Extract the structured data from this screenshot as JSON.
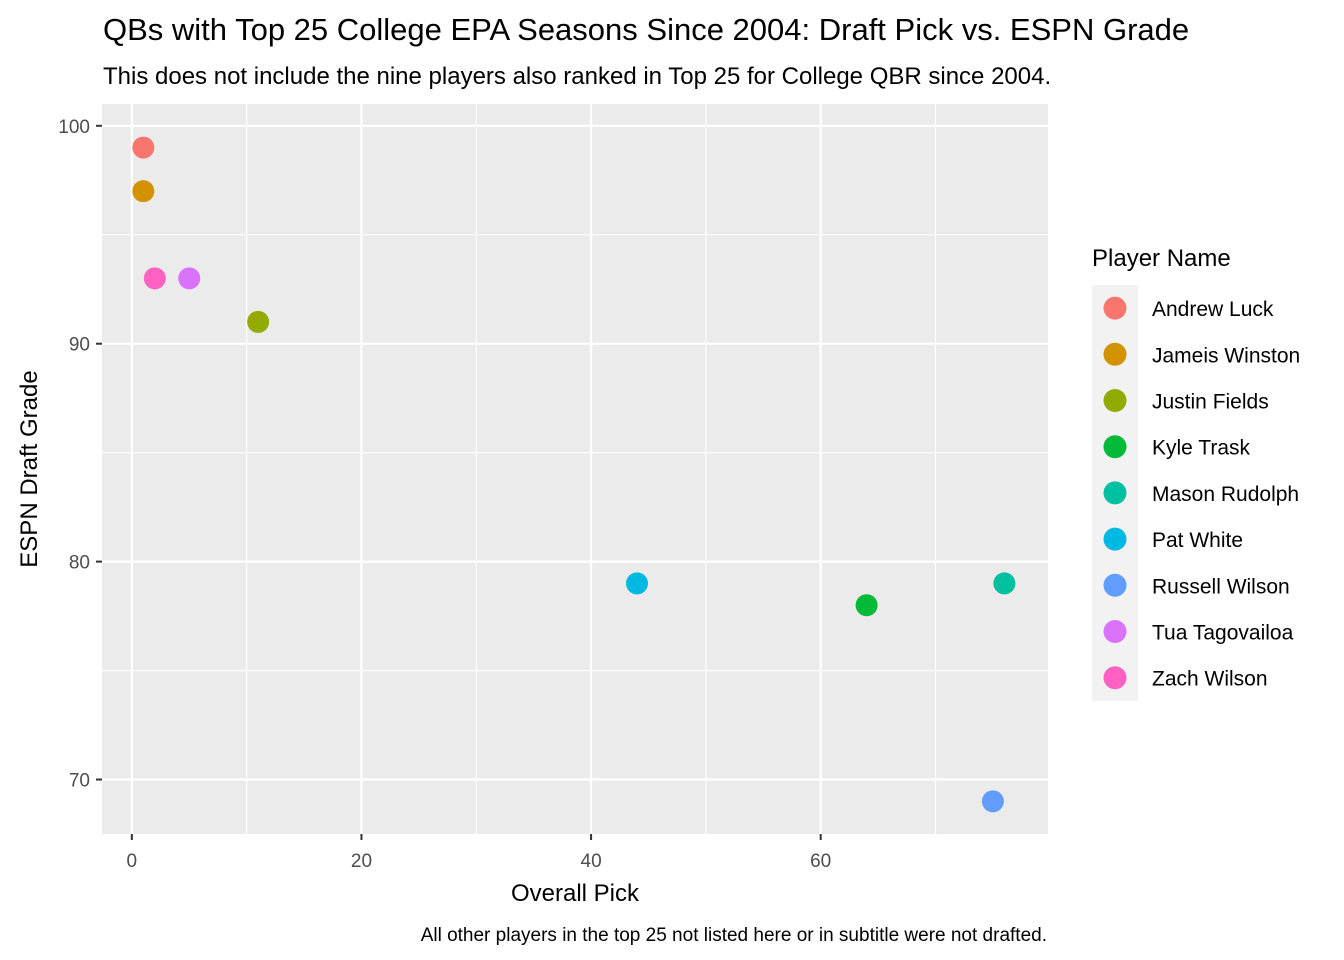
{
  "chart_data": {
    "type": "scatter",
    "title": "QBs with Top 25 College EPA Seasons Since 2004: Draft Pick vs. ESPN Grade",
    "subtitle": "This does not include the nine players also ranked in Top 25 for College QBR since 2004.",
    "caption": "All other players in the top 25 not listed here or in subtitle were not drafted.",
    "xlabel": "Overall Pick",
    "ylabel": "ESPN Draft Grade",
    "xlim": [
      -2.6,
      79.8
    ],
    "ylim": [
      67.5,
      101
    ],
    "x_major_ticks": [
      0,
      20,
      40,
      60
    ],
    "x_minor_ticks": [
      10,
      30,
      50,
      70
    ],
    "y_major_ticks": [
      70,
      80,
      90,
      100
    ],
    "y_minor_ticks": [
      75,
      85,
      95
    ],
    "grid": true,
    "legend_title": "Player Name",
    "legend_position": "right",
    "series": [
      {
        "name": "Andrew Luck",
        "color": "#F8766D",
        "x": 1,
        "y": 99
      },
      {
        "name": "Jameis Winston",
        "color": "#D39200",
        "x": 1,
        "y": 97
      },
      {
        "name": "Justin Fields",
        "color": "#93AA00",
        "x": 11,
        "y": 91
      },
      {
        "name": "Kyle Trask",
        "color": "#00BA38",
        "x": 64,
        "y": 78
      },
      {
        "name": "Mason Rudolph",
        "color": "#00C19F",
        "x": 76,
        "y": 79
      },
      {
        "name": "Pat White",
        "color": "#00B9E3",
        "x": 44,
        "y": 79
      },
      {
        "name": "Russell Wilson",
        "color": "#619CFF",
        "x": 75,
        "y": 69
      },
      {
        "name": "Tua Tagovailoa",
        "color": "#DB72FB",
        "x": 5,
        "y": 93
      },
      {
        "name": "Zach Wilson",
        "color": "#FF61C3",
        "x": 2,
        "y": 93
      }
    ]
  }
}
